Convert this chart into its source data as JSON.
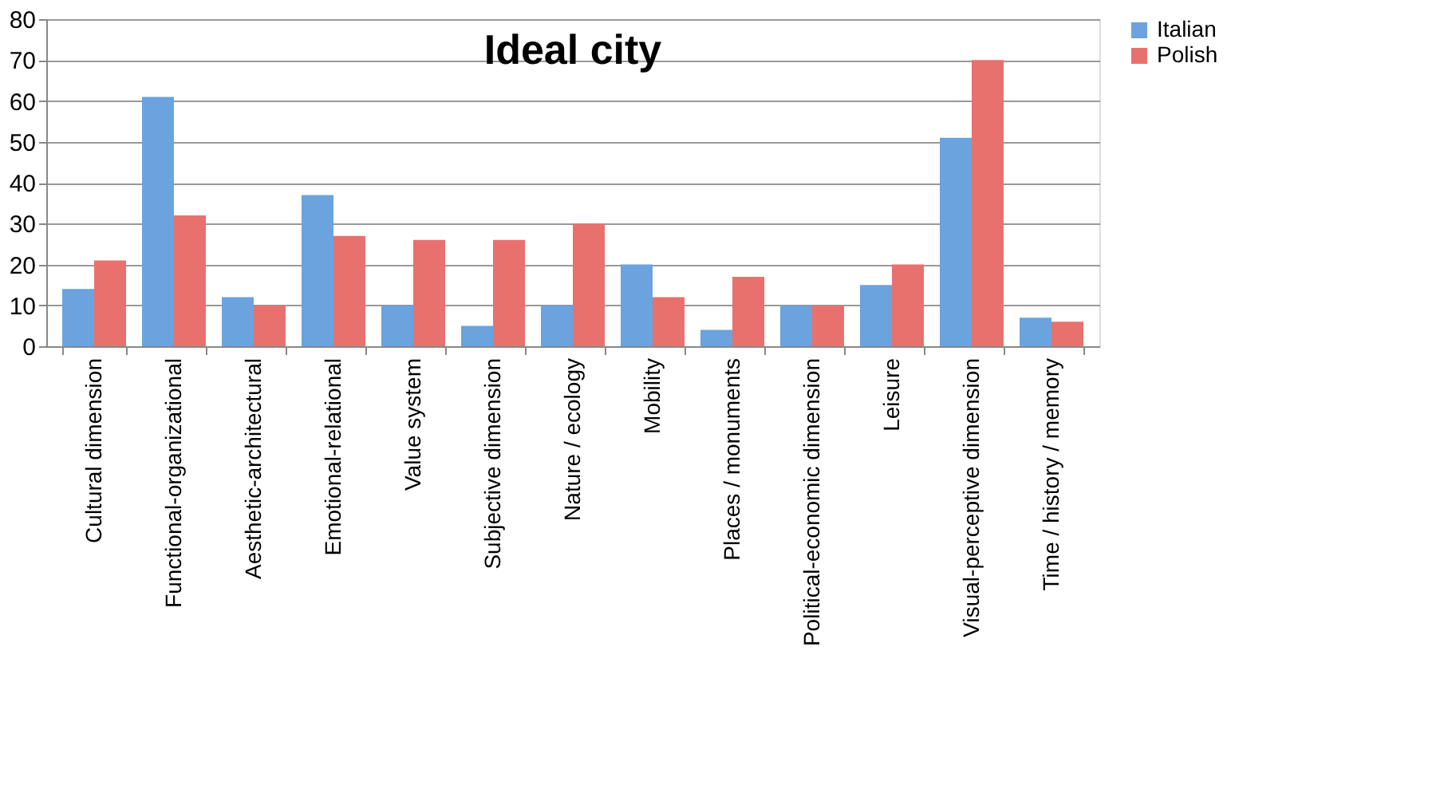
{
  "chart_data": {
    "type": "bar",
    "title": "Ideal city",
    "categories": [
      "Cultural dimension",
      "Functional-organizational",
      "Aesthetic-architectural",
      "Emotional-relational",
      "Value system",
      "Subjective dimension",
      "Nature / ecology",
      "Mobility",
      "Places / monuments",
      "Political-economic dimension",
      "Leisure",
      "Visual-perceptive dimension",
      "Time / history / memory"
    ],
    "series": [
      {
        "name": "Italian",
        "color": "#6aa3dd",
        "values": [
          14,
          61,
          12,
          37,
          10,
          5,
          10,
          20,
          4,
          10,
          15,
          51,
          7
        ]
      },
      {
        "name": "Polish",
        "color": "#e8716d",
        "values": [
          21,
          32,
          10,
          27,
          26,
          26,
          30,
          12,
          17,
          10,
          20,
          70,
          6
        ]
      }
    ],
    "ylim": [
      0,
      80
    ],
    "yticks": [
      0,
      10,
      20,
      30,
      40,
      50,
      60,
      70,
      80
    ],
    "grid": "y",
    "legend": "right"
  }
}
